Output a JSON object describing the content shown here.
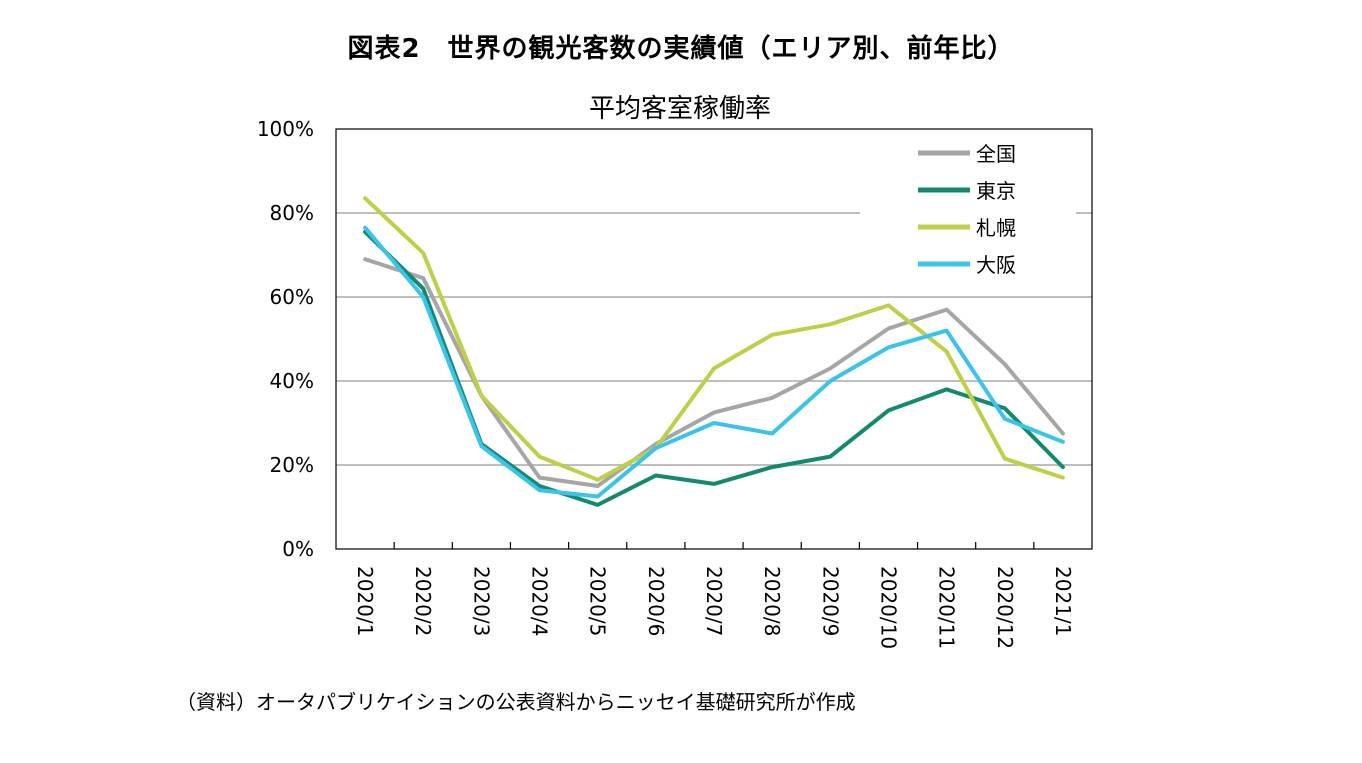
{
  "figure_title": "図表2　世界の観光客数の実績値（エリア別、前年比）",
  "source_note": "（資料）オータパブリケイションの公表資料からニッセイ基礎研究所が作成",
  "chart_data": {
    "type": "line",
    "title": "平均客室稼働率",
    "xlabel": "",
    "ylabel": "",
    "categories": [
      "2020/1",
      "2020/2",
      "2020/3",
      "2020/4",
      "2020/5",
      "2020/6",
      "2020/7",
      "2020/8",
      "2020/9",
      "2020/10",
      "2020/11",
      "2020/12",
      "2021/1"
    ],
    "y_ticks": [
      "0%",
      "20%",
      "40%",
      "60%",
      "80%",
      "100%"
    ],
    "ylim": [
      0,
      100
    ],
    "grid": true,
    "legend_position": "top-right",
    "series": [
      {
        "name": "全国",
        "color": "#a6a6a6",
        "values": [
          69,
          64.5,
          36.5,
          17,
          15,
          25,
          32.5,
          36,
          43,
          52.5,
          57,
          44,
          27.5
        ]
      },
      {
        "name": "東京",
        "color": "#138a6d",
        "values": [
          75.5,
          62,
          25,
          15,
          10.5,
          17.5,
          15.5,
          19.5,
          22,
          33,
          38,
          33.5,
          19.5
        ]
      },
      {
        "name": "札幌",
        "color": "#bfcf47",
        "values": [
          83.5,
          70.5,
          36.5,
          22,
          16.5,
          24,
          43,
          51,
          53.5,
          58,
          47,
          21.5,
          17
        ]
      },
      {
        "name": "大阪",
        "color": "#3bc3ec",
        "values": [
          76.5,
          60,
          24.5,
          14,
          12.5,
          24,
          30,
          27.5,
          40,
          48,
          52,
          31,
          25.5
        ]
      }
    ]
  }
}
